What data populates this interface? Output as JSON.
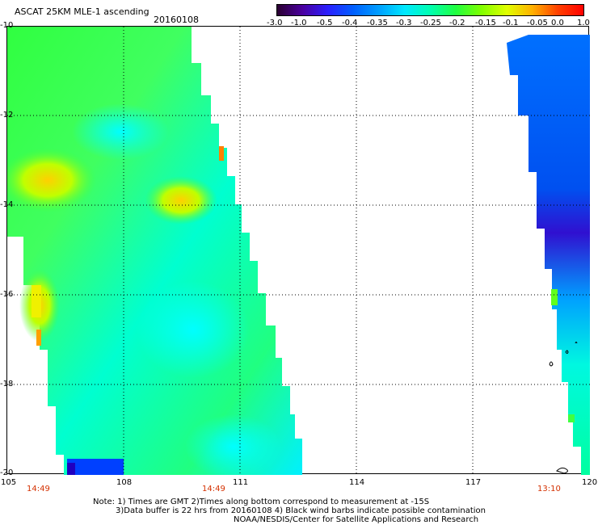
{
  "header": {
    "title": "ASCAT 25KM MLE-1 ascending",
    "date": "20160108"
  },
  "colorbar": {
    "labels": [
      "-3.0",
      "-1.0",
      "-0.5",
      "-0.4",
      "-0.35",
      "-0.3",
      "-0.25",
      "-0.2",
      "-0.15",
      "-0.1",
      "-0.05",
      "0.0",
      "1.0"
    ],
    "colors": [
      "#2a0030",
      "#4a00a0",
      "#2a20ff",
      "#0060ff",
      "#00a0ff",
      "#00e8ff",
      "#00ffb0",
      "#20ff40",
      "#80ff00",
      "#e0ff00",
      "#ffb000",
      "#ff4000",
      "#ff0000"
    ]
  },
  "axes": {
    "y_labels": [
      "-10",
      "-12",
      "-14",
      "-16",
      "-18",
      "-20"
    ],
    "x_labels": [
      "105",
      "108",
      "111",
      "114",
      "117",
      "120"
    ]
  },
  "times": [
    "14:49",
    "14:49",
    "13:10"
  ],
  "notes": {
    "line1": "Note: 1) Times are GMT 2)Times along bottom correspond to measurement at -15S",
    "line2": "3)Data buffer is 22 hrs from 20160108 4) Black wind barbs indicate possible contamination",
    "line3": "NOAA/NESDIS/Center for Satellite Applications and Research"
  }
}
